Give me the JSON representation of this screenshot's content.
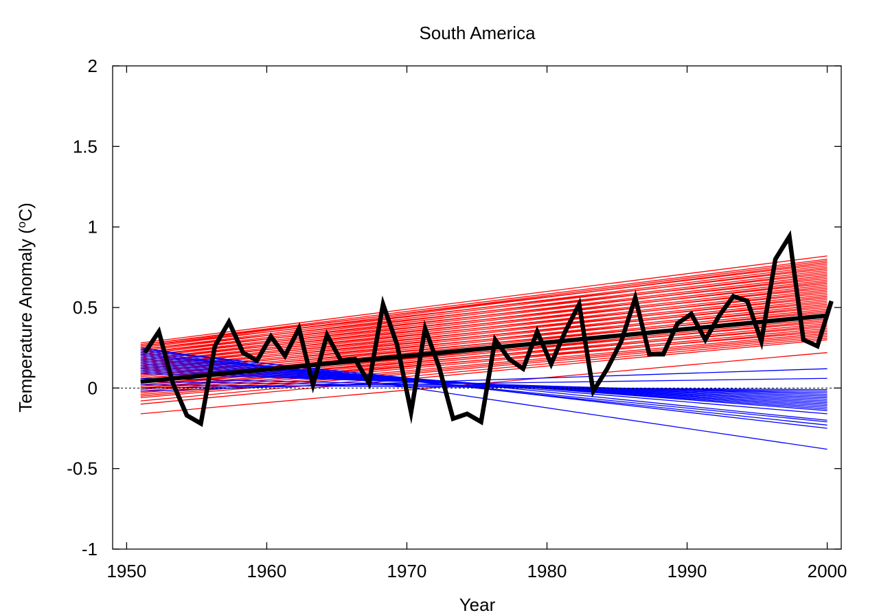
{
  "chart_data": {
    "type": "line",
    "title": "South America",
    "xlabel": "Year",
    "ylabel_main": "Temperature Anomaly (",
    "ylabel_sup": "o",
    "ylabel_tail": "C)",
    "xlim": [
      1949,
      2001
    ],
    "ylim": [
      -1,
      2
    ],
    "xticks": [
      1950,
      1960,
      1970,
      1980,
      1990,
      2000
    ],
    "yticks": [
      -1,
      -0.5,
      0,
      0.5,
      1,
      1.5,
      2
    ],
    "ytick_labels": [
      "-1",
      "-0.5",
      "0",
      "0.5",
      "1",
      "1.5",
      "2"
    ],
    "zero_line": true,
    "grid": false,
    "colors": {
      "warming_trends": "#ff0000",
      "cooling_trends": "#0000ff",
      "observed": "#000000",
      "observed_trend": "#000000"
    },
    "trend_lines_x": [
      1951,
      2000
    ],
    "red_trends": [
      [
        0.28,
        0.82
      ],
      [
        0.27,
        0.8
      ],
      [
        0.26,
        0.79
      ],
      [
        0.25,
        0.78
      ],
      [
        0.27,
        0.77
      ],
      [
        0.24,
        0.76
      ],
      [
        0.23,
        0.75
      ],
      [
        0.26,
        0.74
      ],
      [
        0.22,
        0.73
      ],
      [
        0.21,
        0.72
      ],
      [
        0.24,
        0.71
      ],
      [
        0.2,
        0.7
      ],
      [
        0.19,
        0.69
      ],
      [
        0.22,
        0.68
      ],
      [
        0.18,
        0.67
      ],
      [
        0.17,
        0.66
      ],
      [
        0.2,
        0.65
      ],
      [
        0.16,
        0.64
      ],
      [
        0.15,
        0.63
      ],
      [
        0.18,
        0.62
      ],
      [
        0.14,
        0.61
      ],
      [
        0.13,
        0.6
      ],
      [
        0.16,
        0.59
      ],
      [
        0.12,
        0.58
      ],
      [
        0.11,
        0.57
      ],
      [
        0.14,
        0.56
      ],
      [
        0.1,
        0.55
      ],
      [
        0.09,
        0.54
      ],
      [
        0.12,
        0.53
      ],
      [
        0.08,
        0.52
      ],
      [
        0.07,
        0.51
      ],
      [
        0.1,
        0.5
      ],
      [
        0.06,
        0.49
      ],
      [
        0.05,
        0.48
      ],
      [
        0.08,
        0.47
      ],
      [
        0.04,
        0.46
      ],
      [
        0.03,
        0.45
      ],
      [
        0.06,
        0.44
      ],
      [
        0.02,
        0.43
      ],
      [
        0.01,
        0.42
      ],
      [
        0.04,
        0.41
      ],
      [
        0.0,
        0.4
      ],
      [
        -0.01,
        0.39
      ],
      [
        0.02,
        0.38
      ],
      [
        -0.02,
        0.37
      ],
      [
        -0.03,
        0.36
      ],
      [
        0.0,
        0.35
      ],
      [
        -0.04,
        0.34
      ],
      [
        -0.05,
        0.33
      ],
      [
        -0.06,
        0.32
      ],
      [
        -0.08,
        0.31
      ],
      [
        -0.1,
        0.3
      ],
      [
        -0.16,
        0.22
      ]
    ],
    "blue_trends": [
      [
        0.25,
        -0.38
      ],
      [
        0.24,
        -0.25
      ],
      [
        0.22,
        -0.23
      ],
      [
        0.21,
        -0.21
      ],
      [
        0.23,
        -0.2
      ],
      [
        0.2,
        -0.16
      ],
      [
        0.19,
        -0.14
      ],
      [
        0.18,
        -0.13
      ],
      [
        0.17,
        -0.12
      ],
      [
        0.16,
        -0.11
      ],
      [
        0.15,
        -0.1
      ],
      [
        0.14,
        -0.09
      ],
      [
        0.13,
        -0.08
      ],
      [
        0.12,
        -0.07
      ],
      [
        0.11,
        -0.06
      ],
      [
        0.1,
        -0.05
      ],
      [
        0.09,
        -0.04
      ],
      [
        0.06,
        -0.03
      ],
      [
        0.04,
        -0.02
      ],
      [
        0.02,
        -0.01
      ],
      [
        0.0,
        0.06
      ],
      [
        -0.02,
        0.12
      ]
    ],
    "observed_years": [
      1951.3,
      1952.3,
      1953.3,
      1954.3,
      1955.3,
      1956.3,
      1957.3,
      1958.3,
      1959.3,
      1960.3,
      1961.3,
      1962.3,
      1963.3,
      1964.3,
      1965.3,
      1966.3,
      1967.3,
      1968.3,
      1969.3,
      1970.3,
      1971.3,
      1972.3,
      1973.3,
      1974.3,
      1975.3,
      1976.3,
      1977.3,
      1978.3,
      1979.3,
      1980.3,
      1981.3,
      1982.3,
      1983.3,
      1984.3,
      1985.3,
      1986.3,
      1987.3,
      1988.3,
      1989.3,
      1990.3,
      1991.3,
      1992.3,
      1993.3,
      1994.3,
      1995.3,
      1996.3,
      1997.3,
      1998.3,
      1999.3,
      2000.3
    ],
    "observed_values": [
      0.22,
      0.35,
      0.03,
      -0.17,
      -0.22,
      0.26,
      0.41,
      0.22,
      0.17,
      0.32,
      0.2,
      0.37,
      0.02,
      0.33,
      0.17,
      0.18,
      0.03,
      0.52,
      0.27,
      -0.15,
      0.37,
      0.13,
      -0.19,
      -0.16,
      -0.21,
      0.3,
      0.18,
      0.12,
      0.35,
      0.15,
      0.35,
      0.52,
      -0.02,
      0.12,
      0.29,
      0.56,
      0.21,
      0.21,
      0.4,
      0.46,
      0.3,
      0.45,
      0.57,
      0.54,
      0.29,
      0.8,
      0.94,
      0.3,
      0.26,
      0.54
    ],
    "observed_trend": {
      "x": [
        1951,
        2000
      ],
      "y": [
        0.04,
        0.45
      ]
    }
  }
}
